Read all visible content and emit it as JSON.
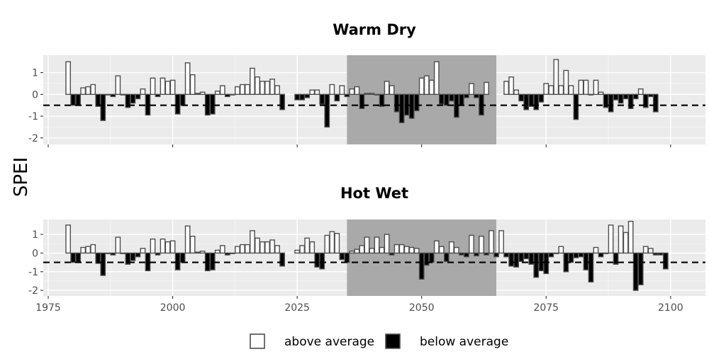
{
  "chart_data": {
    "type": "bar",
    "ylabel": "SPEI",
    "xlim": [
      1974,
      2107
    ],
    "x_ticks": [
      1975,
      2000,
      2025,
      2050,
      2075,
      2100
    ],
    "x_tick_labels": [
      "1975",
      "2000",
      "2025",
      "2050",
      "2075",
      "2100"
    ],
    "y_ticks": [
      1,
      0,
      -1,
      -2
    ],
    "y_tick_labels": [
      "1",
      "0",
      "-1",
      "-2"
    ],
    "ylim": [
      -2.3,
      1.8
    ],
    "threshold": -0.5,
    "highlight_period": [
      2035,
      2065
    ],
    "grid": true,
    "legend_position": "bottom",
    "legend": [
      {
        "label": "above average",
        "fill": "#ffffff"
      },
      {
        "label": "below average",
        "fill": "#000000"
      }
    ],
    "colors": {
      "above": "#ffffff",
      "below": "#000000",
      "bar_outline": "#4d4d4d",
      "highlight": "#a9a9a9",
      "panel_bg": "#ebebeb"
    },
    "panels": [
      {
        "title": "Warm Dry",
        "series": [
          {
            "start_year": 1979,
            "values": [
              1.5,
              -0.5,
              -0.5,
              0.3,
              0.35,
              0.45,
              -0.55,
              -1.2,
              0,
              -0.1,
              0.85,
              0,
              -0.6,
              -0.4,
              -0.2,
              0.25,
              -0.95,
              0.75,
              -0.1,
              0.75,
              0.6,
              0.65,
              -0.9,
              -0.5,
              1.45,
              0.9,
              0.05,
              0.1,
              -0.95,
              -0.9,
              0.15,
              0.4,
              -0.1,
              0,
              0.35,
              0.45,
              0.45,
              1.2,
              0.8,
              0.6,
              0.6,
              0.7,
              0.4,
              -0.7
            ]
          },
          {
            "start_year": 2025,
            "values": [
              -0.25,
              -0.25,
              -0.15,
              0.2,
              0.2,
              -0.45,
              -1.5,
              0.45,
              -0.3,
              0.4,
              -0.1,
              0.25,
              0.35,
              -0.65,
              0.05,
              0.05,
              0,
              -0.55,
              0.6,
              0.4,
              -0.8,
              -1.3,
              -0.95,
              -1.1,
              -0.75,
              0.75,
              0.85,
              0.65,
              1.5,
              -0.45,
              -0.5,
              -0.3,
              -1.05,
              -0.5,
              -0.15,
              0.5,
              -0.15,
              -0.95,
              0.55
            ]
          },
          {
            "start_year": 2067,
            "values": [
              0.6,
              0.8,
              0.2,
              -0.3,
              -0.7,
              -0.55,
              -0.7,
              -0.35,
              0.5,
              0.4,
              1.6,
              0.4,
              1.1,
              0.4,
              -1.15,
              0.65,
              0.65,
              0,
              0.65,
              0.1,
              -0.6,
              -0.8,
              -0.25,
              -0.4,
              -0.2,
              -0.65,
              -0.2,
              0.25,
              -0.6,
              -0.1,
              -0.8
            ]
          }
        ]
      },
      {
        "title": "Hot Wet",
        "series": [
          {
            "start_year": 1979,
            "values": [
              1.5,
              -0.5,
              -0.5,
              0.3,
              0.35,
              0.45,
              -0.55,
              -1.2,
              0,
              -0.1,
              0.85,
              0,
              -0.6,
              -0.4,
              -0.2,
              0.25,
              -0.95,
              0.75,
              -0.1,
              0.75,
              0.6,
              0.65,
              -0.9,
              -0.5,
              1.45,
              0.9,
              0.05,
              0.1,
              -0.95,
              -0.9,
              0.15,
              0.4,
              -0.1,
              0,
              0.35,
              0.45,
              0.45,
              1.2,
              0.8,
              0.6,
              0.6,
              0.7,
              0.4,
              -0.7
            ]
          },
          {
            "start_year": 2025,
            "values": [
              0.15,
              0.4,
              0.8,
              0.6,
              -0.75,
              -0.85,
              0.95,
              1.15,
              1.05,
              -0.35,
              -0.5,
              0.1,
              0.2,
              0.4,
              0.85,
              0.25,
              0.85,
              0.3,
              1.0,
              -0.1,
              0.45,
              0.45,
              0.35,
              0.3,
              0.25,
              -1.4,
              -0.65,
              -0.5,
              0.65,
              0.35,
              -0.45,
              0.6,
              0.3,
              -0.1,
              -0.2,
              0.95,
              -0.15,
              0.9,
              -0.1,
              1.2,
              -0.2,
              1.2,
              -0.2
            ]
          },
          {
            "start_year": 2068,
            "values": [
              -0.7,
              -0.75,
              -0.45,
              -0.3,
              -0.6,
              -1.3,
              -0.95,
              -1.1,
              -0.2,
              0,
              0.35,
              -1.0,
              -0.5,
              -0.25,
              -0.2,
              -0.9,
              -1.55,
              0.3,
              -0.2,
              0,
              1.5,
              -0.6,
              1.45,
              1.1,
              1.7,
              -2.0,
              -1.7,
              0.35,
              0.25,
              -0.1,
              -0.1,
              -0.85
            ]
          }
        ]
      }
    ]
  }
}
